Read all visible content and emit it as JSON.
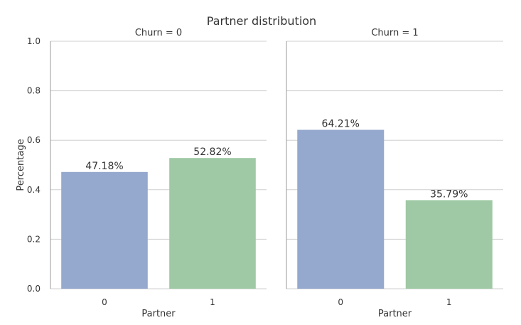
{
  "chart_data": {
    "type": "bar",
    "title": "Partner distribution",
    "ylabel": "Percentage",
    "xlabel": "Partner",
    "ylim": [
      0,
      1.0
    ],
    "yticks": [
      "0.0",
      "0.2",
      "0.4",
      "0.6",
      "0.8",
      "1.0"
    ],
    "grid": true,
    "facets": [
      {
        "title": "Churn = 0",
        "categories": [
          "0",
          "1"
        ],
        "values": [
          0.4718,
          0.5282
        ],
        "labels": [
          "47.18%",
          "52.82%"
        ]
      },
      {
        "title": "Churn = 1",
        "categories": [
          "0",
          "1"
        ],
        "values": [
          0.6421,
          0.3579
        ],
        "labels": [
          "64.21%",
          "35.79%"
        ]
      }
    ],
    "colors": [
      "#95a8cd",
      "#9ec9a4"
    ]
  }
}
